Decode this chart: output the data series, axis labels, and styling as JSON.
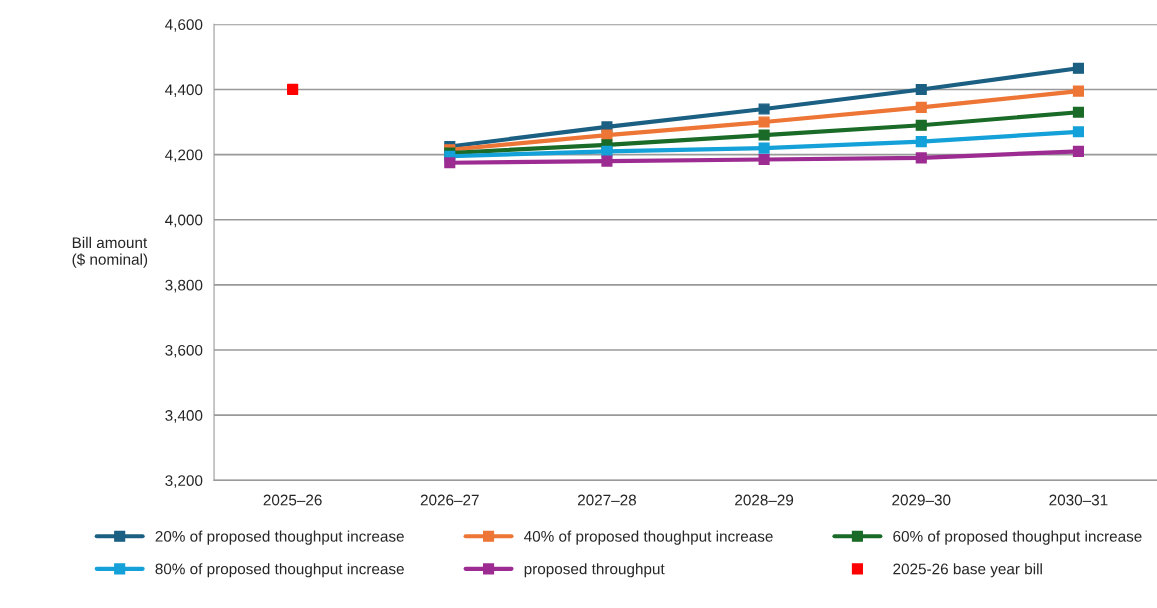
{
  "chart_data": {
    "type": "line",
    "ylabel": "Bill amount\n($ nominal)",
    "categories": [
      "2025–26",
      "2026–27",
      "2027–28",
      "2028–29",
      "2029–30",
      "2030–31"
    ],
    "series": [
      {
        "name": "20% of proposed thoughput increase",
        "color": "#1b5f82",
        "values": [
          null,
          4225,
          4285,
          4340,
          4400,
          4465
        ]
      },
      {
        "name": "40% of proposed thoughput increase",
        "color": "#ed7535",
        "values": [
          null,
          4215,
          4260,
          4300,
          4345,
          4395
        ]
      },
      {
        "name": "60% of proposed thoughput increase",
        "color": "#1a6b27",
        "values": [
          null,
          4205,
          4230,
          4260,
          4290,
          4330
        ]
      },
      {
        "name": "80% of proposed thoughput increase",
        "color": "#14a0d8",
        "values": [
          null,
          4195,
          4210,
          4220,
          4240,
          4270
        ]
      },
      {
        "name": "proposed throughput",
        "color": "#9c2c91",
        "values": [
          null,
          4175,
          4180,
          4185,
          4190,
          4210
        ]
      },
      {
        "name": "2025-26 base year bill",
        "type": "scatter",
        "color": "#ff0000",
        "values": [
          4400,
          null,
          null,
          null,
          null,
          null
        ]
      }
    ],
    "ylim": [
      3200,
      4600
    ],
    "yticks": [
      {
        "value": 3200,
        "label": "3,200"
      },
      {
        "value": 3400,
        "label": "3,400"
      },
      {
        "value": 3600,
        "label": "3,600"
      },
      {
        "value": 3800,
        "label": "3,800"
      },
      {
        "value": 4000,
        "label": "4,000"
      },
      {
        "value": 4200,
        "label": "4,200"
      },
      {
        "value": 4400,
        "label": "4,400"
      },
      {
        "value": 4600,
        "label": "4,600"
      }
    ],
    "grid": "y",
    "legend": "bottom",
    "marker": "square",
    "line_style": "solid"
  }
}
